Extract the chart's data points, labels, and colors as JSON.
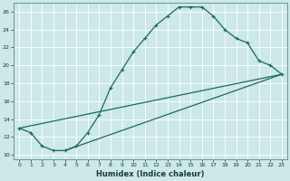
{
  "xlabel": "Humidex (Indice chaleur)",
  "bg_color": "#cce8e8",
  "grid_color": "#ffffff",
  "line_color": "#1a6b5a",
  "xlim": [
    -0.5,
    23.5
  ],
  "ylim": [
    9.5,
    27.0
  ],
  "xtick_labels": [
    "0",
    "1",
    "2",
    "3",
    "4",
    "5",
    "6",
    "7",
    "8",
    "9",
    "10",
    "11",
    "12",
    "13",
    "14",
    "15",
    "16",
    "17",
    "18",
    "19",
    "20",
    "21",
    "22",
    "23"
  ],
  "ytick_vals": [
    10,
    12,
    14,
    16,
    18,
    20,
    22,
    24,
    26
  ],
  "series1_x": [
    0,
    1,
    2,
    3,
    4,
    5,
    6,
    7,
    8,
    9,
    10,
    11,
    12,
    13,
    14,
    15,
    16,
    17,
    18,
    19,
    20,
    21,
    22,
    23
  ],
  "series1_y": [
    13.0,
    12.5,
    11.0,
    10.5,
    10.5,
    11.0,
    12.5,
    14.5,
    17.5,
    19.5,
    21.5,
    23.0,
    24.5,
    25.5,
    26.5,
    26.5,
    26.5,
    25.5,
    24.0,
    23.0,
    22.5,
    20.5,
    20.0,
    19.0
  ],
  "series2_x": [
    0,
    23
  ],
  "series2_y": [
    13.0,
    19.0
  ],
  "series3_x": [
    4,
    23
  ],
  "series3_y": [
    10.5,
    19.0
  ]
}
